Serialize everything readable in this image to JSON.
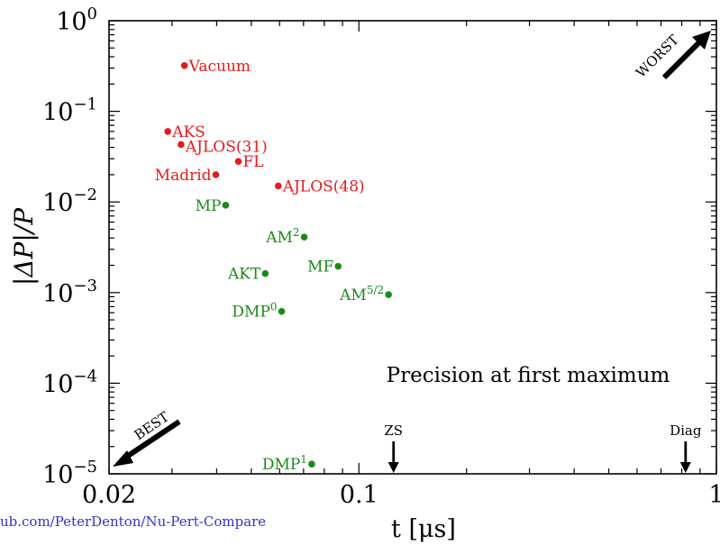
{
  "chart_data": {
    "type": "scatter",
    "xscale": "log",
    "yscale": "log",
    "xlim": [
      0.02,
      1
    ],
    "ylim": [
      1e-05,
      1
    ],
    "xlabel": "t [μs]",
    "ylabel": "|ΔP|/P",
    "annotation": "Precision at first maximum",
    "footer_link": "ub.com/PeterDenton/Nu-Pert-Compare",
    "xticks": [
      {
        "value": 0.02,
        "label": "0.02"
      },
      {
        "value": 0.1,
        "label": "0.1"
      },
      {
        "value": 1,
        "label": "1"
      }
    ],
    "yticks": [
      {
        "value": 1,
        "base": "10",
        "exp": "0"
      },
      {
        "value": 0.1,
        "base": "10",
        "exp": "−1"
      },
      {
        "value": 0.01,
        "base": "10",
        "exp": "−2"
      },
      {
        "value": 0.001,
        "base": "10",
        "exp": "−3"
      },
      {
        "value": 0.0001,
        "base": "10",
        "exp": "−4"
      },
      {
        "value": 1e-05,
        "base": "10",
        "exp": "−5"
      }
    ],
    "series": [
      {
        "color": "#e41a1c",
        "points": [
          {
            "label": "Vacuum",
            "sup": "",
            "x": 0.0325,
            "y": 0.32,
            "side": "right"
          },
          {
            "label": "AKS",
            "sup": "",
            "x": 0.0292,
            "y": 0.06,
            "side": "right"
          },
          {
            "label": "AJLOS(31)",
            "sup": "",
            "x": 0.0318,
            "y": 0.043,
            "side": "right",
            "dy": 2
          },
          {
            "label": "FL",
            "sup": "",
            "x": 0.046,
            "y": 0.028,
            "side": "right"
          },
          {
            "label": "Madrid",
            "sup": "",
            "x": 0.0398,
            "y": 0.02,
            "side": "left"
          },
          {
            "label": "AJLOS(48)",
            "sup": "",
            "x": 0.0595,
            "y": 0.015,
            "side": "right"
          }
        ]
      },
      {
        "color": "#1a8a1a",
        "points": [
          {
            "label": "MP",
            "sup": "",
            "x": 0.0424,
            "y": 0.0092,
            "side": "left"
          },
          {
            "label": "AM",
            "sup": "2",
            "x": 0.0703,
            "y": 0.0041,
            "side": "left"
          },
          {
            "label": "MF",
            "sup": "",
            "x": 0.0875,
            "y": 0.00195,
            "side": "left"
          },
          {
            "label": "AKT",
            "sup": "",
            "x": 0.0547,
            "y": 0.00162,
            "side": "left"
          },
          {
            "label": "AM",
            "sup": "5/2",
            "x": 0.121,
            "y": 0.00095,
            "side": "left"
          },
          {
            "label": "DMP",
            "sup": "0",
            "x": 0.0608,
            "y": 0.00062,
            "side": "left"
          },
          {
            "label": "DMP",
            "sup": "1",
            "x": 0.0738,
            "y": 1.28e-05,
            "side": "left"
          }
        ]
      }
    ],
    "markers": [
      {
        "label": "ZS",
        "x": 0.125
      },
      {
        "label": "Diag",
        "x": 0.82
      }
    ],
    "corner_arrows": [
      {
        "label": "WORST",
        "corner": "top-right"
      },
      {
        "label": "BEST",
        "corner": "bottom-left"
      }
    ]
  }
}
